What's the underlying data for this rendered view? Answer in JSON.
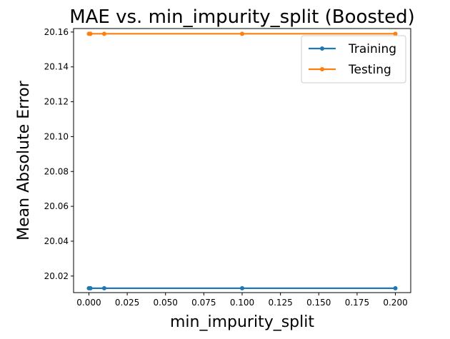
{
  "chart_data": {
    "type": "line",
    "title": "MAE vs. min_impurity_split (Boosted)",
    "xlabel": "min_impurity_split",
    "ylabel": "Mean Absolute Error",
    "x": [
      0.0,
      0.001,
      0.01,
      0.1,
      0.2
    ],
    "xlim": [
      -0.01,
      0.21
    ],
    "ylim": [
      20.0105,
      20.162
    ],
    "xticks": [
      0.0,
      0.025,
      0.05,
      0.075,
      0.1,
      0.125,
      0.15,
      0.175,
      0.2
    ],
    "xtick_labels": [
      "0.000",
      "0.025",
      "0.050",
      "0.075",
      "0.100",
      "0.125",
      "0.150",
      "0.175",
      "0.200"
    ],
    "yticks": [
      20.02,
      20.04,
      20.06,
      20.08,
      20.1,
      20.12,
      20.14,
      20.16
    ],
    "ytick_labels": [
      "20.02",
      "20.04",
      "20.06",
      "20.08",
      "20.10",
      "20.12",
      "20.14",
      "20.16"
    ],
    "grid": false,
    "legend_position": "top-right",
    "series": [
      {
        "name": "Training",
        "color": "#1f77b4",
        "values": [
          20.013,
          20.013,
          20.013,
          20.013,
          20.013
        ]
      },
      {
        "name": "Testing",
        "color": "#ff7f0e",
        "values": [
          20.159,
          20.159,
          20.159,
          20.159,
          20.159
        ]
      }
    ]
  }
}
